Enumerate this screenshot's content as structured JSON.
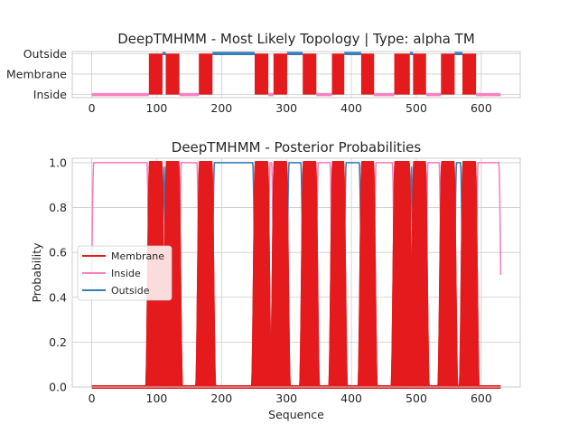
{
  "figure": {
    "background": "#ffffff",
    "grid_color": "#cccccc",
    "spine_color": "#cccccc"
  },
  "chart_data": [
    {
      "type": "line",
      "title": "DeepTMHMM - Most Likely Topology | Type: alpha TM",
      "xlabel": "",
      "ylabel": "",
      "xlim": [
        -30,
        660
      ],
      "ylim": [
        -0.15,
        2.1
      ],
      "x_ticks": [
        0,
        100,
        200,
        300,
        400,
        500,
        600
      ],
      "x_tick_labels": [
        "0",
        "100",
        "200",
        "300",
        "400",
        "500",
        "600"
      ],
      "y_ticks": [
        0,
        1,
        2
      ],
      "y_tick_labels": [
        "Inside",
        "Membrane",
        "Outside"
      ],
      "grid": true,
      "segments": [
        {
          "state": "Inside",
          "start": 0,
          "end": 88
        },
        {
          "state": "Membrane",
          "start": 88,
          "end": 109
        },
        {
          "state": "Outside",
          "start": 109,
          "end": 114
        },
        {
          "state": "Membrane",
          "start": 114,
          "end": 135
        },
        {
          "state": "Inside",
          "start": 135,
          "end": 165
        },
        {
          "state": "Membrane",
          "start": 165,
          "end": 186
        },
        {
          "state": "Outside",
          "start": 186,
          "end": 251
        },
        {
          "state": "Membrane",
          "start": 251,
          "end": 272
        },
        {
          "state": "Inside",
          "start": 272,
          "end": 280
        },
        {
          "state": "Membrane",
          "start": 280,
          "end": 301
        },
        {
          "state": "Outside",
          "start": 301,
          "end": 325
        },
        {
          "state": "Membrane",
          "start": 325,
          "end": 346
        },
        {
          "state": "Inside",
          "start": 346,
          "end": 370
        },
        {
          "state": "Membrane",
          "start": 370,
          "end": 389
        },
        {
          "state": "Outside",
          "start": 389,
          "end": 415
        },
        {
          "state": "Membrane",
          "start": 415,
          "end": 435
        },
        {
          "state": "Inside",
          "start": 435,
          "end": 466
        },
        {
          "state": "Membrane",
          "start": 466,
          "end": 490
        },
        {
          "state": "Outside",
          "start": 490,
          "end": 495
        },
        {
          "state": "Membrane",
          "start": 495,
          "end": 515
        },
        {
          "state": "Inside",
          "start": 515,
          "end": 538
        },
        {
          "state": "Membrane",
          "start": 538,
          "end": 559
        },
        {
          "state": "Outside",
          "start": 559,
          "end": 571
        },
        {
          "state": "Membrane",
          "start": 571,
          "end": 592
        },
        {
          "state": "Inside",
          "start": 592,
          "end": 630
        }
      ],
      "state_colors": {
        "Inside": "#f781bf",
        "Membrane": "#e41a1c",
        "Outside": "#377eb8"
      }
    },
    {
      "type": "line",
      "title": "DeepTMHMM - Posterior Probabilities",
      "xlabel": "Sequence",
      "ylabel": "Probability",
      "xlim": [
        -30,
        660
      ],
      "ylim": [
        0,
        1.02
      ],
      "x_ticks": [
        0,
        100,
        200,
        300,
        400,
        500,
        600
      ],
      "y_ticks": [
        0.0,
        0.2,
        0.4,
        0.6,
        0.8,
        1.0
      ],
      "y_tick_labels": [
        "0.0",
        "0.2",
        "0.4",
        "0.6",
        "0.8",
        "1.0"
      ],
      "grid": true,
      "legend_position": "center-left",
      "series": [
        {
          "name": "Membrane",
          "color": "#e41a1c"
        },
        {
          "name": "Inside",
          "color": "#f781bf"
        },
        {
          "name": "Outside",
          "color": "#377eb8"
        }
      ]
    }
  ]
}
